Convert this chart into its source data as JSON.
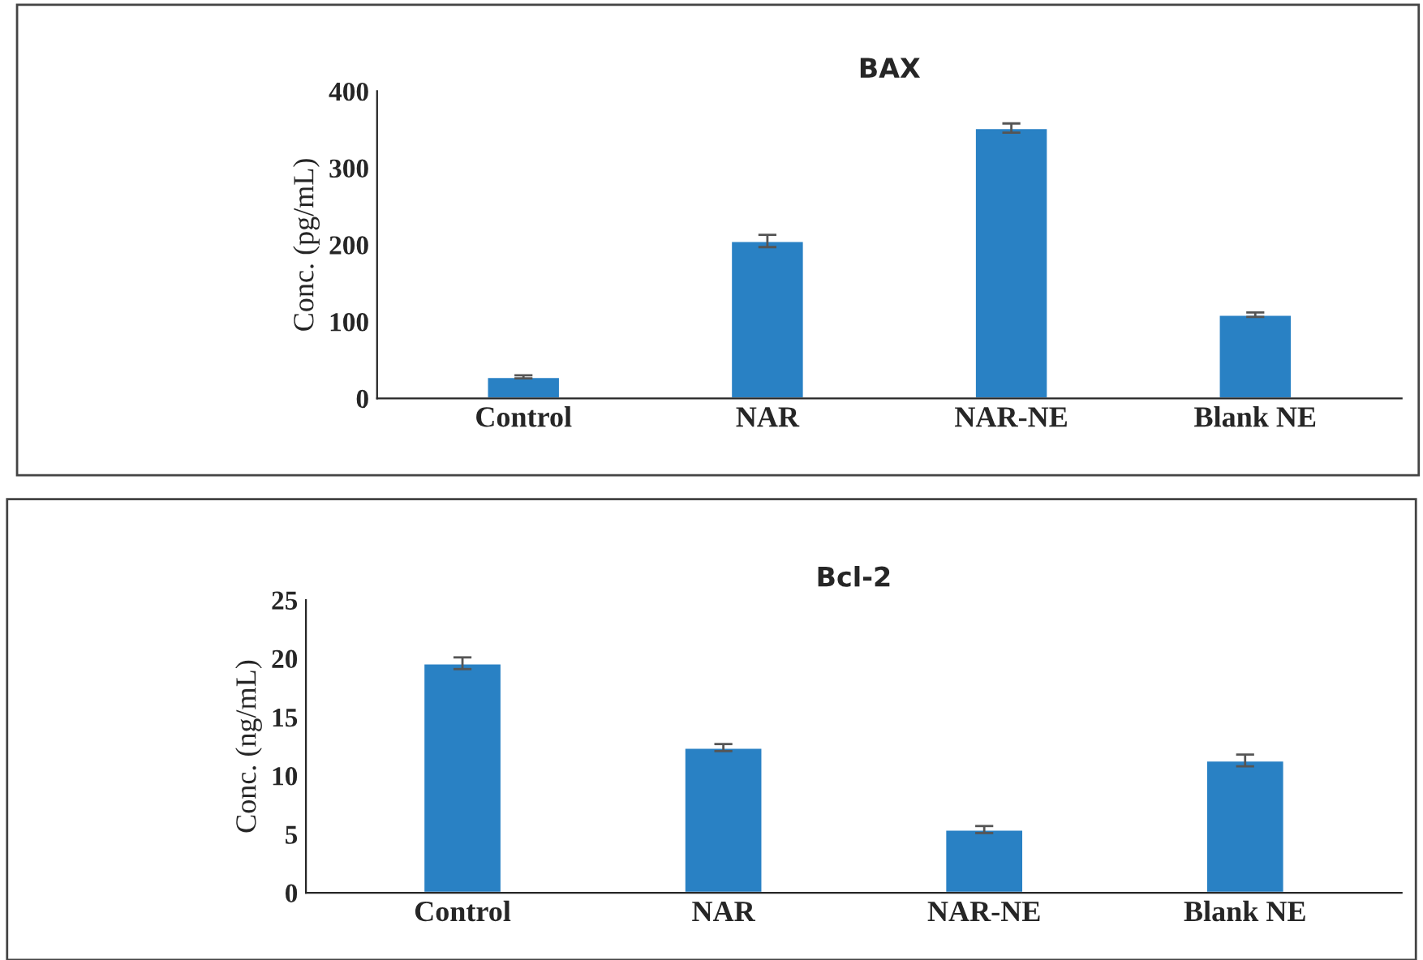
{
  "chart_data": [
    {
      "type": "bar",
      "title": "BAX",
      "ylabel": "Conc. (pg/mL)",
      "categories": [
        "Control",
        "NAR",
        "NAR-NE",
        "Blank NE"
      ],
      "values": [
        28,
        205,
        352,
        109
      ],
      "errors": [
        2,
        8,
        6,
        3
      ],
      "color": "#2981c4",
      "ylim": [
        0,
        400
      ],
      "yticks": [
        0,
        100,
        200,
        300,
        400
      ],
      "grid": false
    },
    {
      "type": "bar",
      "title": "Bcl-2",
      "ylabel": "Conc. (ng/mL)",
      "categories": [
        "Control",
        "NAR",
        "NAR-NE",
        "Blank NE"
      ],
      "values": [
        19.6,
        12.4,
        5.4,
        11.3
      ],
      "errors": [
        0.5,
        0.3,
        0.3,
        0.5
      ],
      "color": "#2981c4",
      "ylim": [
        0,
        25
      ],
      "yticks": [
        0,
        5,
        10,
        15,
        20,
        25
      ],
      "grid": false
    }
  ]
}
